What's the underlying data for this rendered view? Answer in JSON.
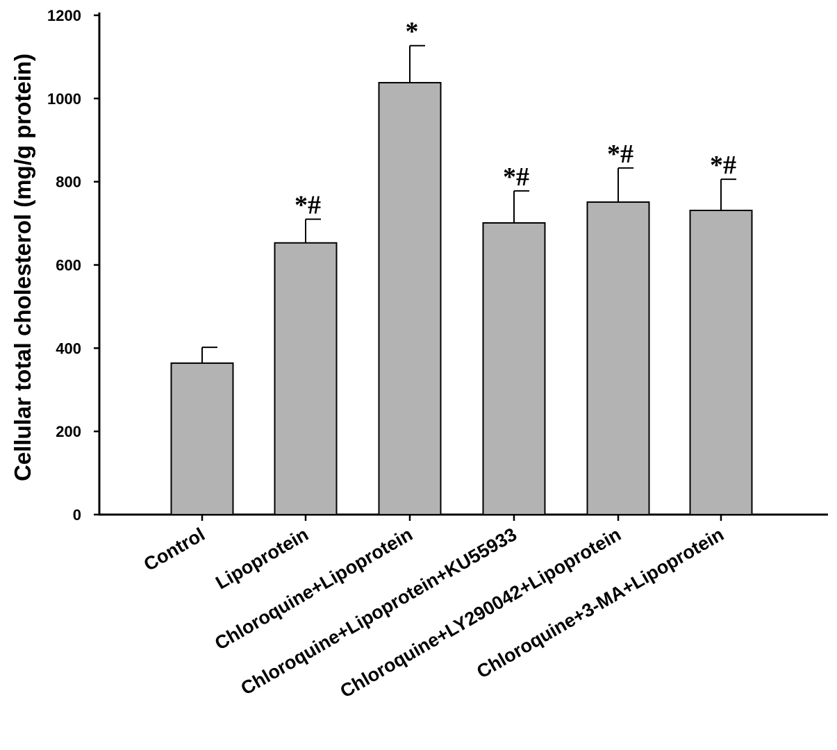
{
  "chart_data": {
    "type": "bar",
    "title": "",
    "xlabel": "",
    "ylabel": "Cellular total cholesterol  (mg/g protein)",
    "ylim": [
      0,
      1200
    ],
    "yticks": [
      0,
      200,
      400,
      600,
      800,
      1000,
      1200
    ],
    "grid": false,
    "categories": [
      "Control",
      "Lipoprotein",
      "Chloroquine+Lipoprotein",
      "Chloroquine+Lipoprotein+KU55933",
      "Chloroquine+LY290042+Lipoprotein",
      "Chloroquine+3-MA+Lipoprotein"
    ],
    "values": [
      364,
      653,
      1038,
      701,
      751,
      731
    ],
    "error": [
      38,
      57,
      89,
      77,
      82,
      75
    ],
    "annotations": [
      "",
      "*#",
      "*",
      "*#",
      "*#",
      "*#"
    ],
    "bar_color": "#b3b3b3"
  }
}
